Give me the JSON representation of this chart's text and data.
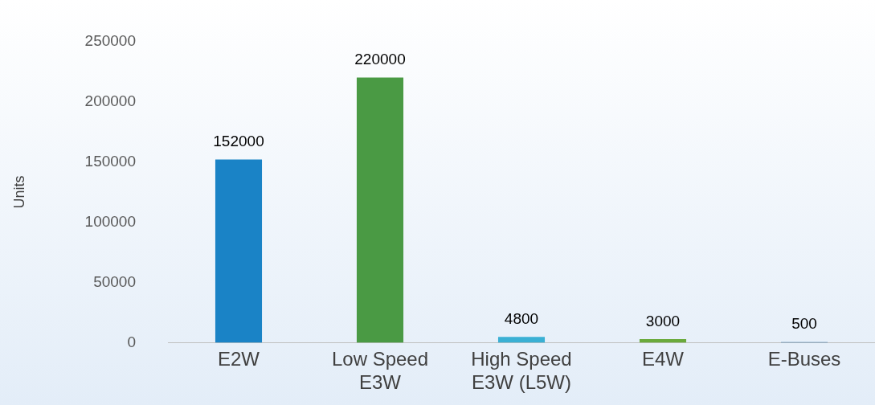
{
  "chart_data": {
    "type": "bar",
    "ylabel": "Units",
    "categories": [
      "E2W",
      "Low Speed E3W",
      "High Speed E3W (L5W)",
      "E4W",
      "E-Buses"
    ],
    "values": [
      152000,
      220000,
      4800,
      3000,
      500
    ],
    "colors": [
      "#1a83c6",
      "#4a9a44",
      "#3ab0d4",
      "#6aaa3c",
      "#2f6fa8"
    ],
    "ylim": [
      0,
      250000
    ],
    "yticks": [
      0,
      50000,
      100000,
      150000,
      200000,
      250000
    ],
    "grid": false,
    "legend": false,
    "data_labels": true
  }
}
